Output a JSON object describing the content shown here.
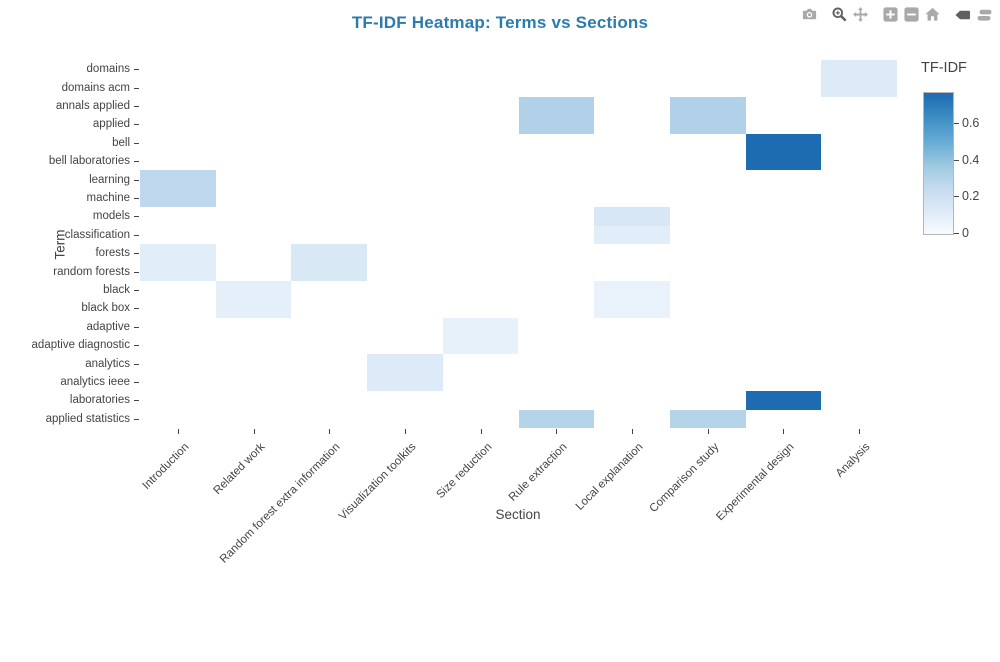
{
  "title": "TF-IDF Heatmap: Terms vs Sections",
  "modebar": {
    "buttons": [
      "camera-icon",
      "zoom-icon",
      "pan-icon",
      "zoom-in-icon",
      "zoom-out-icon",
      "home-icon",
      "hover-closest-icon",
      "hover-compare-icon"
    ]
  },
  "colors": {
    "title": "#2b7cad",
    "tick_text": "#444444",
    "max_cell": "#1b6ab0",
    "min_cell": "#f7fbff"
  },
  "chart_data": {
    "type": "heatmap",
    "title": "TF-IDF Heatmap: Terms vs Sections",
    "xlabel": "Section",
    "ylabel": "Term",
    "colorscale": "Blues",
    "zmin": 0,
    "zmax": 0.77,
    "x": [
      "Introduction",
      "Related work",
      "Random forest extra information",
      "Visualization toolkits",
      "Size reduction",
      "Rule extraction",
      "Local explanation",
      "Comparison study",
      "Experimental design",
      "Analysis"
    ],
    "y": [
      "domains",
      "domains acm",
      "annals applied",
      "applied",
      "bell",
      "bell laboratories",
      "learning",
      "machine",
      "models",
      "classification",
      "forests",
      "random forests",
      "black",
      "black box",
      "adaptive",
      "adaptive diagnostic",
      "analytics",
      "analytics ieee",
      "laboratories",
      "applied statistics"
    ],
    "cells": [
      {
        "term": "domains",
        "section": "Analysis",
        "value": 0.13
      },
      {
        "term": "domains acm",
        "section": "Analysis",
        "value": 0.13
      },
      {
        "term": "annals applied",
        "section": "Rule extraction",
        "value": 0.32
      },
      {
        "term": "annals applied",
        "section": "Comparison study",
        "value": 0.32
      },
      {
        "term": "applied",
        "section": "Rule extraction",
        "value": 0.32
      },
      {
        "term": "applied",
        "section": "Comparison study",
        "value": 0.32
      },
      {
        "term": "bell",
        "section": "Experimental design",
        "value": 0.77
      },
      {
        "term": "bell laboratories",
        "section": "Experimental design",
        "value": 0.77
      },
      {
        "term": "learning",
        "section": "Introduction",
        "value": 0.27
      },
      {
        "term": "machine",
        "section": "Introduction",
        "value": 0.27
      },
      {
        "term": "models",
        "section": "Local explanation",
        "value": 0.16
      },
      {
        "term": "classification",
        "section": "Local explanation",
        "value": 0.11
      },
      {
        "term": "forests",
        "section": "Introduction",
        "value": 0.11
      },
      {
        "term": "forests",
        "section": "Random forest extra information",
        "value": 0.15
      },
      {
        "term": "random forests",
        "section": "Introduction",
        "value": 0.11
      },
      {
        "term": "random forests",
        "section": "Random forest extra information",
        "value": 0.15
      },
      {
        "term": "black",
        "section": "Related work",
        "value": 0.09
      },
      {
        "term": "black",
        "section": "Local explanation",
        "value": 0.07
      },
      {
        "term": "black box",
        "section": "Related work",
        "value": 0.09
      },
      {
        "term": "black box",
        "section": "Local explanation",
        "value": 0.07
      },
      {
        "term": "adaptive",
        "section": "Size reduction",
        "value": 0.08
      },
      {
        "term": "adaptive diagnostic",
        "section": "Size reduction",
        "value": 0.08
      },
      {
        "term": "analytics",
        "section": "Visualization toolkits",
        "value": 0.13
      },
      {
        "term": "analytics ieee",
        "section": "Visualization toolkits",
        "value": 0.13
      },
      {
        "term": "laboratories",
        "section": "Experimental design",
        "value": 0.77
      },
      {
        "term": "applied statistics",
        "section": "Rule extraction",
        "value": 0.3
      },
      {
        "term": "applied statistics",
        "section": "Comparison study",
        "value": 0.3
      }
    ],
    "colorbar": {
      "title": "TF-IDF",
      "ticks": [
        0.6,
        0.4,
        0.2,
        0
      ]
    },
    "legend_position": "right",
    "grid": false
  }
}
